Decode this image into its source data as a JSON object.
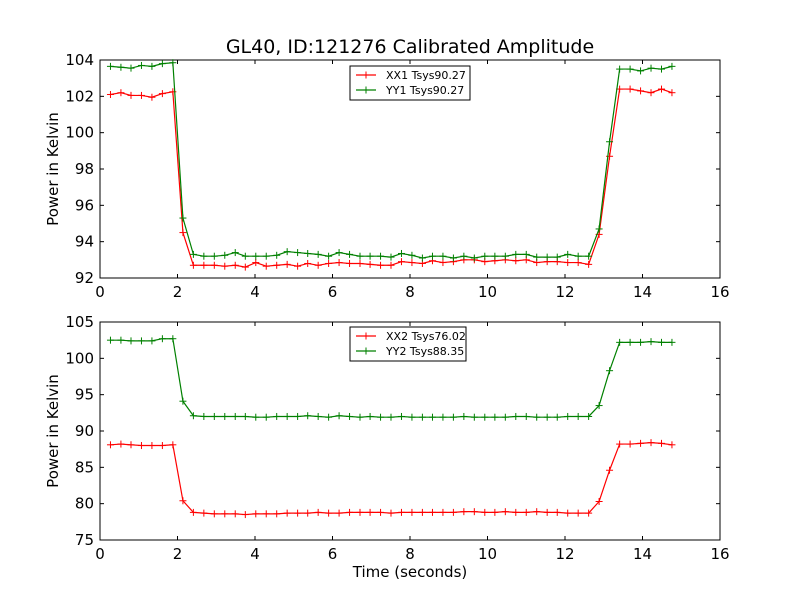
{
  "figure": {
    "title": "GL40, ID:121276 Calibrated Amplitude"
  },
  "chart_data": [
    {
      "type": "line",
      "xlabel": "",
      "ylabel": "Power in Kelvin",
      "xlim": [
        0,
        16
      ],
      "ylim": [
        92,
        104
      ],
      "xticks": [
        "0",
        "2",
        "4",
        "6",
        "8",
        "10",
        "12",
        "14",
        "16"
      ],
      "yticks": [
        "92",
        "94",
        "96",
        "98",
        "100",
        "102",
        "104"
      ],
      "legend_position": "top-center",
      "grid": false,
      "x": [
        0.27,
        0.54,
        0.8,
        1.07,
        1.34,
        1.61,
        1.88,
        2.14,
        2.41,
        2.68,
        2.95,
        3.22,
        3.49,
        3.75,
        4.02,
        4.29,
        4.56,
        4.83,
        5.1,
        5.36,
        5.63,
        5.9,
        6.17,
        6.44,
        6.71,
        6.97,
        7.24,
        7.51,
        7.78,
        8.05,
        8.32,
        8.58,
        8.85,
        9.12,
        9.39,
        9.66,
        9.93,
        10.19,
        10.46,
        10.73,
        11.0,
        11.27,
        11.54,
        11.8,
        12.07,
        12.34,
        12.61,
        12.88,
        13.15,
        13.41,
        13.68,
        13.95,
        14.22,
        14.49,
        14.76
      ],
      "series": [
        {
          "name": "XX1 Tsys90.27",
          "color": "#ff0000",
          "values": [
            102.1,
            102.2,
            102.05,
            102.05,
            101.95,
            102.15,
            102.25,
            94.5,
            92.7,
            92.7,
            92.7,
            92.65,
            92.7,
            92.6,
            92.85,
            92.65,
            92.7,
            92.75,
            92.65,
            92.8,
            92.7,
            92.8,
            92.85,
            92.8,
            92.8,
            92.75,
            92.7,
            92.7,
            92.9,
            92.85,
            92.8,
            92.95,
            92.85,
            92.9,
            93.0,
            93.0,
            92.9,
            92.95,
            93.0,
            92.95,
            93.0,
            92.85,
            92.9,
            92.9,
            92.85,
            92.85,
            92.75,
            94.4,
            98.7,
            102.4,
            102.4,
            102.3,
            102.2,
            102.4,
            102.2
          ]
        },
        {
          "name": "YY1 Tsys90.27",
          "color": "#008000",
          "values": [
            103.65,
            103.6,
            103.55,
            103.7,
            103.65,
            103.8,
            103.85,
            95.3,
            93.3,
            93.2,
            93.2,
            93.25,
            93.4,
            93.2,
            93.2,
            93.2,
            93.25,
            93.45,
            93.4,
            93.35,
            93.3,
            93.2,
            93.4,
            93.3,
            93.2,
            93.2,
            93.2,
            93.15,
            93.35,
            93.25,
            93.1,
            93.2,
            93.2,
            93.1,
            93.2,
            93.1,
            93.2,
            93.2,
            93.2,
            93.3,
            93.3,
            93.15,
            93.15,
            93.15,
            93.3,
            93.2,
            93.2,
            94.7,
            99.5,
            103.5,
            103.5,
            103.4,
            103.55,
            103.5,
            103.65
          ]
        }
      ]
    },
    {
      "type": "line",
      "xlabel": "Time (seconds)",
      "ylabel": "Power in Kelvin",
      "xlim": [
        0,
        16
      ],
      "ylim": [
        75,
        105
      ],
      "xticks": [
        "0",
        "2",
        "4",
        "6",
        "8",
        "10",
        "12",
        "14",
        "16"
      ],
      "yticks": [
        "75",
        "80",
        "85",
        "90",
        "95",
        "100",
        "105"
      ],
      "legend_position": "top-center",
      "grid": false,
      "x": [
        0.27,
        0.54,
        0.8,
        1.07,
        1.34,
        1.61,
        1.88,
        2.14,
        2.41,
        2.68,
        2.95,
        3.22,
        3.49,
        3.75,
        4.02,
        4.29,
        4.56,
        4.83,
        5.1,
        5.36,
        5.63,
        5.9,
        6.17,
        6.44,
        6.71,
        6.97,
        7.24,
        7.51,
        7.78,
        8.05,
        8.32,
        8.58,
        8.85,
        9.12,
        9.39,
        9.66,
        9.93,
        10.19,
        10.46,
        10.73,
        11.0,
        11.27,
        11.54,
        11.8,
        12.07,
        12.34,
        12.61,
        12.88,
        13.15,
        13.41,
        13.68,
        13.95,
        14.22,
        14.49,
        14.76
      ],
      "series": [
        {
          "name": "XX2 Tsys76.02",
          "color": "#ff0000",
          "values": [
            88.1,
            88.2,
            88.1,
            88.0,
            88.0,
            88.0,
            88.1,
            80.4,
            78.8,
            78.7,
            78.6,
            78.6,
            78.6,
            78.5,
            78.6,
            78.6,
            78.6,
            78.7,
            78.7,
            78.7,
            78.8,
            78.7,
            78.7,
            78.8,
            78.8,
            78.8,
            78.8,
            78.7,
            78.8,
            78.8,
            78.8,
            78.8,
            78.8,
            78.8,
            78.9,
            78.9,
            78.8,
            78.8,
            78.9,
            78.8,
            78.8,
            78.9,
            78.8,
            78.8,
            78.7,
            78.7,
            78.7,
            80.3,
            84.6,
            88.2,
            88.2,
            88.3,
            88.4,
            88.3,
            88.1
          ]
        },
        {
          "name": "YY2 Tsys88.35",
          "color": "#008000",
          "values": [
            102.5,
            102.5,
            102.4,
            102.4,
            102.4,
            102.7,
            102.7,
            94.1,
            92.1,
            92.0,
            92.0,
            92.0,
            92.0,
            92.0,
            91.9,
            91.9,
            92.0,
            92.0,
            92.0,
            92.1,
            92.0,
            91.9,
            92.1,
            92.0,
            91.9,
            92.0,
            91.9,
            91.9,
            92.0,
            91.9,
            91.9,
            91.9,
            91.9,
            91.9,
            92.0,
            91.9,
            91.9,
            91.9,
            91.9,
            92.0,
            92.0,
            91.9,
            91.9,
            91.9,
            92.0,
            92.0,
            92.0,
            93.5,
            98.3,
            102.2,
            102.2,
            102.2,
            102.3,
            102.2,
            102.2
          ]
        }
      ]
    }
  ]
}
